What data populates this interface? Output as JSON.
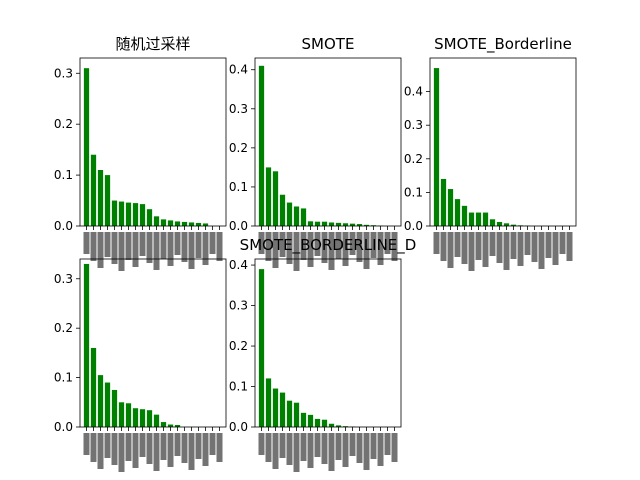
{
  "chart_data": [
    {
      "type": "bar",
      "title": "随机过采样",
      "color": "#008000",
      "ylim": [
        0,
        0.33
      ],
      "yticks": [
        "0.0",
        "0.1",
        "0.2",
        "0.3"
      ],
      "ytick_values": [
        0,
        0.1,
        0.2,
        0.3
      ],
      "values": [
        0.31,
        0.14,
        0.11,
        0.1,
        0.05,
        0.048,
        0.046,
        0.045,
        0.043,
        0.033,
        0.019,
        0.013,
        0.011,
        0.009,
        0.008,
        0.007,
        0.006,
        0.005,
        0.0,
        0.0
      ]
    },
    {
      "type": "bar",
      "title": "SMOTE",
      "color": "#008000",
      "ylim": [
        0,
        0.43
      ],
      "yticks": [
        "0.0",
        "0.1",
        "0.2",
        "0.3",
        "0.4"
      ],
      "ytick_values": [
        0,
        0.1,
        0.2,
        0.3,
        0.4
      ],
      "values": [
        0.41,
        0.15,
        0.14,
        0.08,
        0.06,
        0.05,
        0.045,
        0.012,
        0.011,
        0.011,
        0.009,
        0.008,
        0.007,
        0.006,
        0.005,
        0.003,
        0.002,
        0.001,
        0.0,
        0.0
      ]
    },
    {
      "type": "bar",
      "title": "SMOTE_Borderline",
      "color": "#008000",
      "ylim": [
        0,
        0.5
      ],
      "yticks": [
        "0.0",
        "0.1",
        "0.2",
        "0.3",
        "0.4"
      ],
      "ytick_values": [
        0,
        0.1,
        0.2,
        0.3,
        0.4
      ],
      "values": [
        0.47,
        0.14,
        0.11,
        0.08,
        0.06,
        0.04,
        0.04,
        0.04,
        0.02,
        0.012,
        0.008,
        0.004,
        0.002,
        0.001,
        0.0,
        0.0,
        0.0,
        0.0,
        0.0,
        0.0
      ]
    },
    {
      "type": "bar",
      "title": "",
      "color": "#008000",
      "ylim": [
        0,
        0.34
      ],
      "yticks": [
        "0.0",
        "0.1",
        "0.2",
        "0.3"
      ],
      "ytick_values": [
        0,
        0.1,
        0.2,
        0.3
      ],
      "values": [
        0.33,
        0.16,
        0.105,
        0.09,
        0.075,
        0.05,
        0.048,
        0.038,
        0.036,
        0.034,
        0.025,
        0.01,
        0.005,
        0.004,
        0.0,
        0.0,
        0.0,
        0.0,
        0.0,
        0.0
      ]
    },
    {
      "type": "bar",
      "title": "SMOTE_BORDERLINE_D",
      "color": "#008000",
      "ylim": [
        0,
        0.415
      ],
      "yticks": [
        "0.0",
        "0.1",
        "0.2",
        "0.3",
        "0.4"
      ],
      "ytick_values": [
        0,
        0.1,
        0.2,
        0.3,
        0.4
      ],
      "values": [
        0.39,
        0.12,
        0.095,
        0.085,
        0.065,
        0.06,
        0.035,
        0.03,
        0.02,
        0.018,
        0.008,
        0.004,
        0.002,
        0.001,
        0.0,
        0.0,
        0.0,
        0.0,
        0.0,
        0.0
      ]
    }
  ]
}
